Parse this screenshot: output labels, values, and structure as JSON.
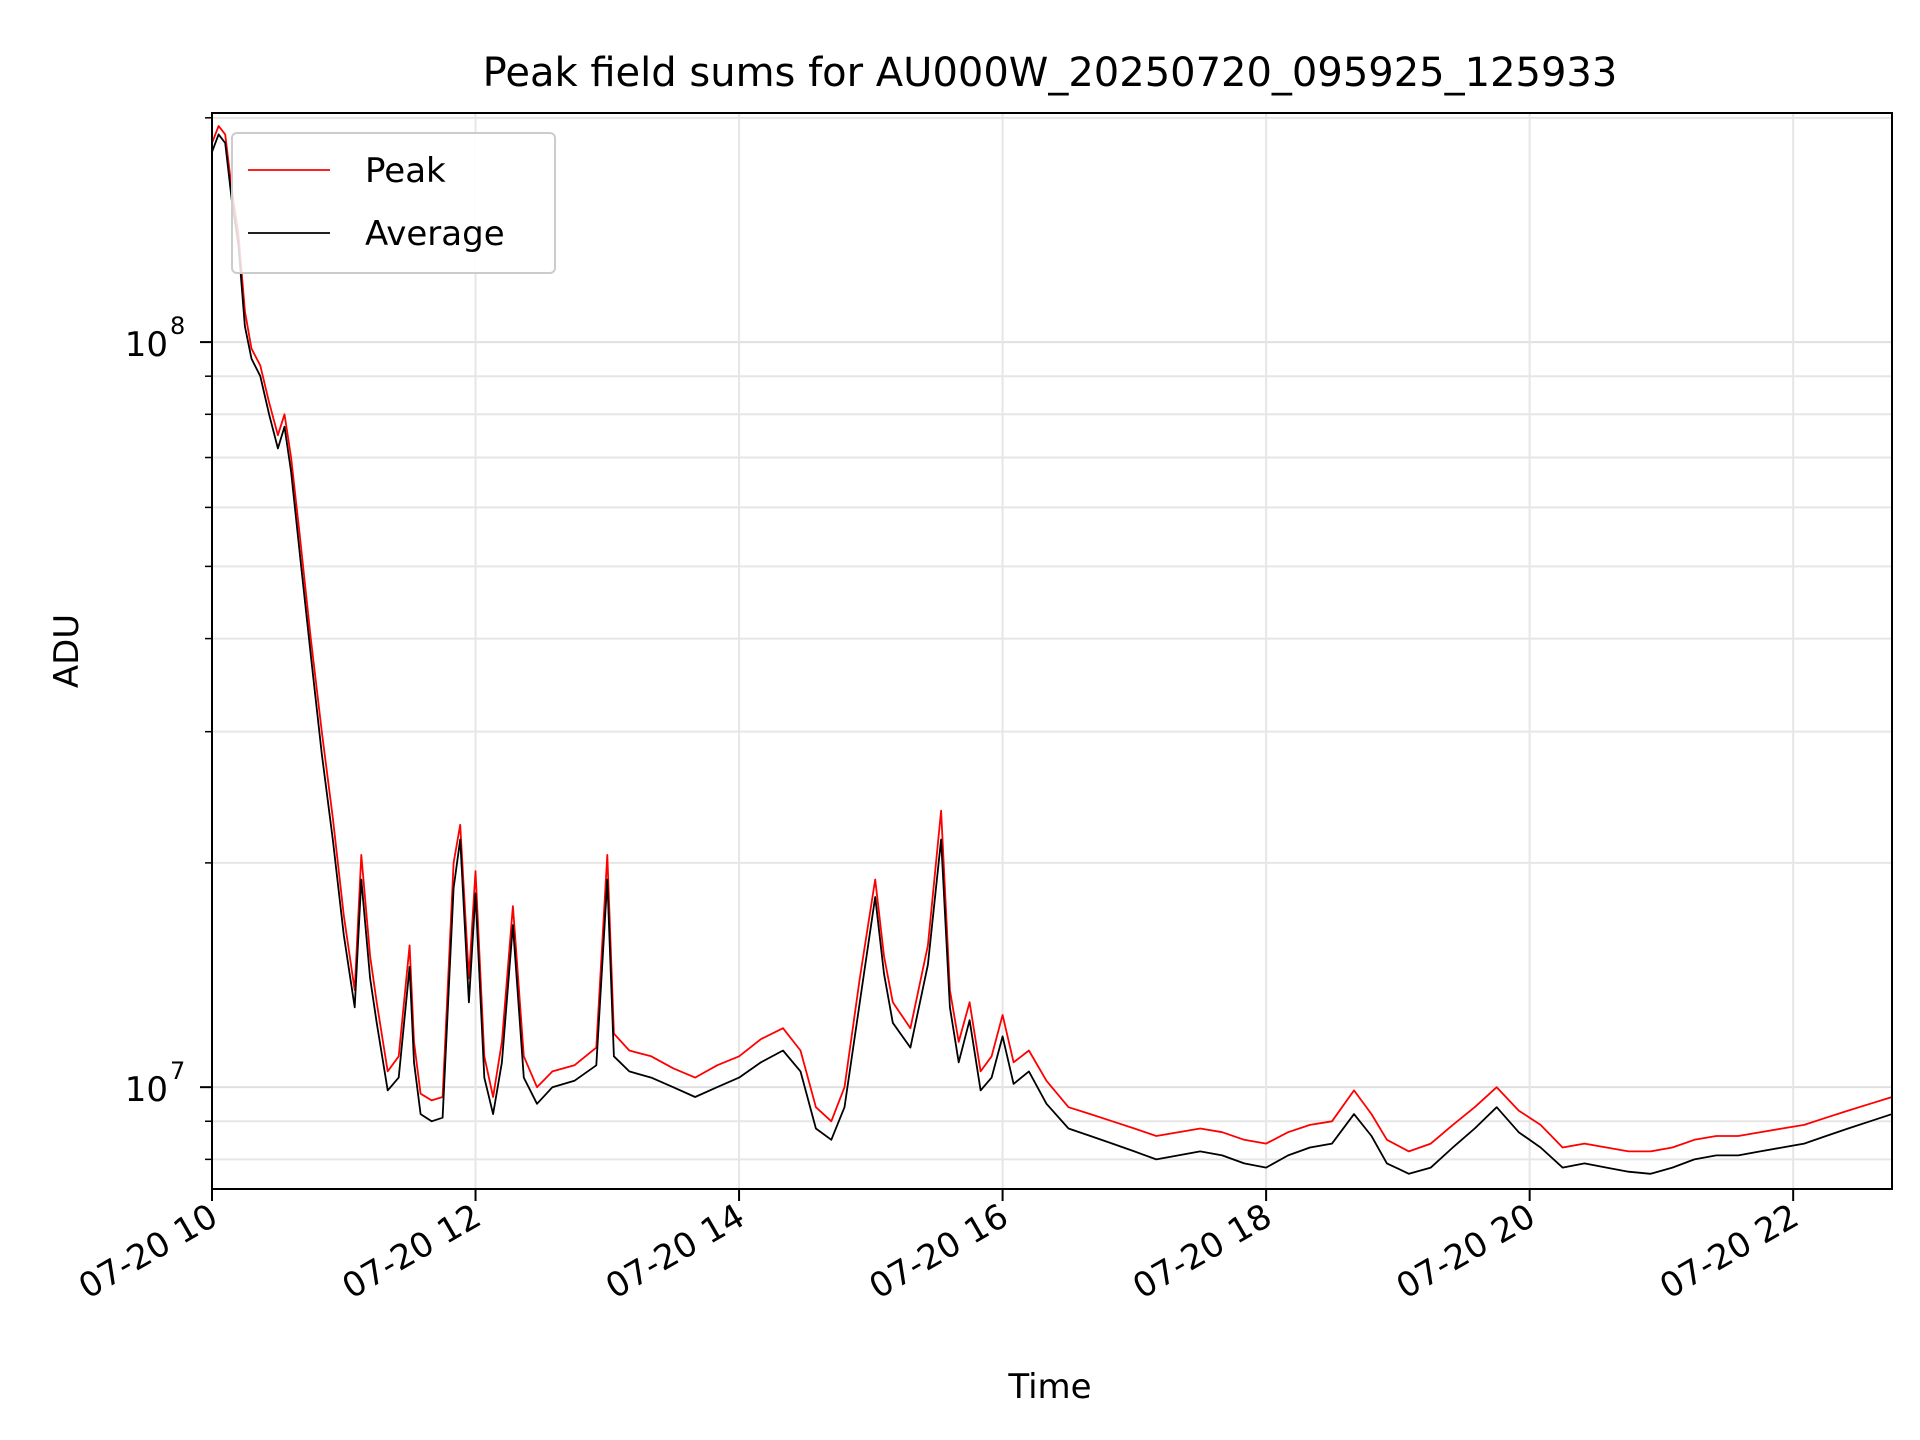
{
  "chart_data": {
    "type": "line",
    "title": "Peak field sums for AU000W_20250720_095925_125933",
    "xlabel": "Time",
    "ylabel": "ADU",
    "yscale": "log",
    "xlim": [
      "07-20 10:00",
      "07-20 22:45"
    ],
    "ylim": [
      7300000,
      203000000
    ],
    "grid": true,
    "legend_position": "top-left",
    "x_ticks": [
      "07-20 10",
      "07-20 12",
      "07-20 14",
      "07-20 16",
      "07-20 18",
      "07-20 20",
      "07-20 22"
    ],
    "y_ticks": [
      {
        "value": 10000000,
        "base": "10",
        "exponent": "7"
      },
      {
        "value": 100000000,
        "base": "10",
        "exponent": "8"
      }
    ],
    "series": [
      {
        "name": "Peak",
        "color": "#ff0000",
        "points": [
          [
            "07-20 10:00",
            185000000
          ],
          [
            "07-20 10:03",
            195000000
          ],
          [
            "07-20 10:06",
            190000000
          ],
          [
            "07-20 10:09",
            160000000
          ],
          [
            "07-20 10:12",
            140000000
          ],
          [
            "07-20 10:15",
            110000000
          ],
          [
            "07-20 10:18",
            98000000
          ],
          [
            "07-20 10:22",
            93000000
          ],
          [
            "07-20 10:26",
            83000000
          ],
          [
            "07-20 10:30",
            75000000
          ],
          [
            "07-20 10:33",
            80000000
          ],
          [
            "07-20 10:36",
            70000000
          ],
          [
            "07-20 10:40",
            55000000
          ],
          [
            "07-20 10:45",
            40000000
          ],
          [
            "07-20 10:50",
            30000000
          ],
          [
            "07-20 10:55",
            23000000
          ],
          [
            "07-20 11:00",
            17000000
          ],
          [
            "07-20 11:05",
            13500000
          ],
          [
            "07-20 11:08",
            20500000
          ],
          [
            "07-20 11:12",
            15000000
          ],
          [
            "07-20 11:15",
            13000000
          ],
          [
            "07-20 11:20",
            10500000
          ],
          [
            "07-20 11:25",
            11000000
          ],
          [
            "07-20 11:30",
            15500000
          ],
          [
            "07-20 11:32",
            11500000
          ],
          [
            "07-20 11:35",
            9800000
          ],
          [
            "07-20 11:40",
            9600000
          ],
          [
            "07-20 11:45",
            9700000
          ],
          [
            "07-20 11:50",
            20000000
          ],
          [
            "07-20 11:53",
            22500000
          ],
          [
            "07-20 11:57",
            14000000
          ],
          [
            "07-20 12:00",
            19500000
          ],
          [
            "07-20 12:04",
            11000000
          ],
          [
            "07-20 12:08",
            9700000
          ],
          [
            "07-20 12:12",
            11500000
          ],
          [
            "07-20 12:17",
            17500000
          ],
          [
            "07-20 12:22",
            11000000
          ],
          [
            "07-20 12:28",
            10000000
          ],
          [
            "07-20 12:35",
            10500000
          ],
          [
            "07-20 12:45",
            10700000
          ],
          [
            "07-20 12:55",
            11300000
          ],
          [
            "07-20 13:00",
            20500000
          ],
          [
            "07-20 13:03",
            11800000
          ],
          [
            "07-20 13:10",
            11200000
          ],
          [
            "07-20 13:20",
            11000000
          ],
          [
            "07-20 13:30",
            10600000
          ],
          [
            "07-20 13:40",
            10300000
          ],
          [
            "07-20 13:50",
            10700000
          ],
          [
            "07-20 14:00",
            11000000
          ],
          [
            "07-20 14:10",
            11600000
          ],
          [
            "07-20 14:20",
            12000000
          ],
          [
            "07-20 14:28",
            11200000
          ],
          [
            "07-20 14:35",
            9400000
          ],
          [
            "07-20 14:42",
            9000000
          ],
          [
            "07-20 14:48",
            10000000
          ],
          [
            "07-20 14:55",
            14000000
          ],
          [
            "07-20 15:02",
            19000000
          ],
          [
            "07-20 15:06",
            15000000
          ],
          [
            "07-20 15:10",
            13000000
          ],
          [
            "07-20 15:18",
            12000000
          ],
          [
            "07-20 15:26",
            15500000
          ],
          [
            "07-20 15:32",
            23500000
          ],
          [
            "07-20 15:36",
            13500000
          ],
          [
            "07-20 15:40",
            11500000
          ],
          [
            "07-20 15:45",
            13000000
          ],
          [
            "07-20 15:50",
            10500000
          ],
          [
            "07-20 15:55",
            11000000
          ],
          [
            "07-20 16:00",
            12500000
          ],
          [
            "07-20 16:05",
            10800000
          ],
          [
            "07-20 16:12",
            11200000
          ],
          [
            "07-20 16:20",
            10200000
          ],
          [
            "07-20 16:30",
            9400000
          ],
          [
            "07-20 16:40",
            9200000
          ],
          [
            "07-20 16:50",
            9000000
          ],
          [
            "07-20 17:00",
            8800000
          ],
          [
            "07-20 17:10",
            8600000
          ],
          [
            "07-20 17:20",
            8700000
          ],
          [
            "07-20 17:30",
            8800000
          ],
          [
            "07-20 17:40",
            8700000
          ],
          [
            "07-20 17:50",
            8500000
          ],
          [
            "07-20 18:00",
            8400000
          ],
          [
            "07-20 18:10",
            8700000
          ],
          [
            "07-20 18:20",
            8900000
          ],
          [
            "07-20 18:30",
            9000000
          ],
          [
            "07-20 18:40",
            9900000
          ],
          [
            "07-20 18:48",
            9200000
          ],
          [
            "07-20 18:55",
            8500000
          ],
          [
            "07-20 19:05",
            8200000
          ],
          [
            "07-20 19:15",
            8400000
          ],
          [
            "07-20 19:25",
            8900000
          ],
          [
            "07-20 19:35",
            9400000
          ],
          [
            "07-20 19:45",
            10000000
          ],
          [
            "07-20 19:55",
            9300000
          ],
          [
            "07-20 20:05",
            8900000
          ],
          [
            "07-20 20:15",
            8300000
          ],
          [
            "07-20 20:25",
            8400000
          ],
          [
            "07-20 20:35",
            8300000
          ],
          [
            "07-20 20:45",
            8200000
          ],
          [
            "07-20 20:55",
            8200000
          ],
          [
            "07-20 21:05",
            8300000
          ],
          [
            "07-20 21:15",
            8500000
          ],
          [
            "07-20 21:25",
            8600000
          ],
          [
            "07-20 21:35",
            8600000
          ],
          [
            "07-20 21:45",
            8700000
          ],
          [
            "07-20 21:55",
            8800000
          ],
          [
            "07-20 22:05",
            8900000
          ],
          [
            "07-20 22:15",
            9100000
          ],
          [
            "07-20 22:25",
            9300000
          ],
          [
            "07-20 22:35",
            9500000
          ],
          [
            "07-20 22:45",
            9700000
          ]
        ]
      },
      {
        "name": "Average",
        "color": "#000000",
        "points": [
          [
            "07-20 10:00",
            180000000
          ],
          [
            "07-20 10:03",
            190000000
          ],
          [
            "07-20 10:06",
            185000000
          ],
          [
            "07-20 10:09",
            155000000
          ],
          [
            "07-20 10:12",
            135000000
          ],
          [
            "07-20 10:15",
            105000000
          ],
          [
            "07-20 10:18",
            95000000
          ],
          [
            "07-20 10:22",
            90000000
          ],
          [
            "07-20 10:26",
            80000000
          ],
          [
            "07-20 10:30",
            72000000
          ],
          [
            "07-20 10:33",
            77000000
          ],
          [
            "07-20 10:36",
            67000000
          ],
          [
            "07-20 10:40",
            52000000
          ],
          [
            "07-20 10:45",
            38000000
          ],
          [
            "07-20 10:50",
            28000000
          ],
          [
            "07-20 10:55",
            21500000
          ],
          [
            "07-20 11:00",
            16000000
          ],
          [
            "07-20 11:05",
            12800000
          ],
          [
            "07-20 11:08",
            19000000
          ],
          [
            "07-20 11:12",
            14000000
          ],
          [
            "07-20 11:15",
            12200000
          ],
          [
            "07-20 11:20",
            9900000
          ],
          [
            "07-20 11:25",
            10300000
          ],
          [
            "07-20 11:30",
            14500000
          ],
          [
            "07-20 11:32",
            10800000
          ],
          [
            "07-20 11:35",
            9200000
          ],
          [
            "07-20 11:40",
            9000000
          ],
          [
            "07-20 11:45",
            9100000
          ],
          [
            "07-20 11:50",
            18500000
          ],
          [
            "07-20 11:53",
            21500000
          ],
          [
            "07-20 11:57",
            13000000
          ],
          [
            "07-20 12:00",
            18200000
          ],
          [
            "07-20 12:04",
            10300000
          ],
          [
            "07-20 12:08",
            9200000
          ],
          [
            "07-20 12:12",
            10800000
          ],
          [
            "07-20 12:17",
            16500000
          ],
          [
            "07-20 12:22",
            10300000
          ],
          [
            "07-20 12:28",
            9500000
          ],
          [
            "07-20 12:35",
            10000000
          ],
          [
            "07-20 12:45",
            10200000
          ],
          [
            "07-20 12:55",
            10700000
          ],
          [
            "07-20 13:00",
            19000000
          ],
          [
            "07-20 13:03",
            11000000
          ],
          [
            "07-20 13:10",
            10500000
          ],
          [
            "07-20 13:20",
            10300000
          ],
          [
            "07-20 13:30",
            10000000
          ],
          [
            "07-20 13:40",
            9700000
          ],
          [
            "07-20 13:50",
            10000000
          ],
          [
            "07-20 14:00",
            10300000
          ],
          [
            "07-20 14:10",
            10800000
          ],
          [
            "07-20 14:20",
            11200000
          ],
          [
            "07-20 14:28",
            10500000
          ],
          [
            "07-20 14:35",
            8800000
          ],
          [
            "07-20 14:42",
            8500000
          ],
          [
            "07-20 14:48",
            9400000
          ],
          [
            "07-20 14:55",
            13000000
          ],
          [
            "07-20 15:02",
            18000000
          ],
          [
            "07-20 15:06",
            14200000
          ],
          [
            "07-20 15:10",
            12200000
          ],
          [
            "07-20 15:18",
            11300000
          ],
          [
            "07-20 15:26",
            14600000
          ],
          [
            "07-20 15:32",
            21500000
          ],
          [
            "07-20 15:36",
            12800000
          ],
          [
            "07-20 15:40",
            10800000
          ],
          [
            "07-20 15:45",
            12300000
          ],
          [
            "07-20 15:50",
            9900000
          ],
          [
            "07-20 15:55",
            10300000
          ],
          [
            "07-20 16:00",
            11700000
          ],
          [
            "07-20 16:05",
            10100000
          ],
          [
            "07-20 16:12",
            10500000
          ],
          [
            "07-20 16:20",
            9500000
          ],
          [
            "07-20 16:30",
            8800000
          ],
          [
            "07-20 16:40",
            8600000
          ],
          [
            "07-20 16:50",
            8400000
          ],
          [
            "07-20 17:00",
            8200000
          ],
          [
            "07-20 17:10",
            8000000
          ],
          [
            "07-20 17:20",
            8100000
          ],
          [
            "07-20 17:30",
            8200000
          ],
          [
            "07-20 17:40",
            8100000
          ],
          [
            "07-20 17:50",
            7900000
          ],
          [
            "07-20 18:00",
            7800000
          ],
          [
            "07-20 18:10",
            8100000
          ],
          [
            "07-20 18:20",
            8300000
          ],
          [
            "07-20 18:30",
            8400000
          ],
          [
            "07-20 18:40",
            9200000
          ],
          [
            "07-20 18:48",
            8600000
          ],
          [
            "07-20 18:55",
            7900000
          ],
          [
            "07-20 19:05",
            7650000
          ],
          [
            "07-20 19:15",
            7800000
          ],
          [
            "07-20 19:25",
            8300000
          ],
          [
            "07-20 19:35",
            8800000
          ],
          [
            "07-20 19:45",
            9400000
          ],
          [
            "07-20 19:55",
            8700000
          ],
          [
            "07-20 20:05",
            8300000
          ],
          [
            "07-20 20:15",
            7800000
          ],
          [
            "07-20 20:25",
            7900000
          ],
          [
            "07-20 20:35",
            7800000
          ],
          [
            "07-20 20:45",
            7700000
          ],
          [
            "07-20 20:55",
            7650000
          ],
          [
            "07-20 21:05",
            7800000
          ],
          [
            "07-20 21:15",
            8000000
          ],
          [
            "07-20 21:25",
            8100000
          ],
          [
            "07-20 21:35",
            8100000
          ],
          [
            "07-20 21:45",
            8200000
          ],
          [
            "07-20 21:55",
            8300000
          ],
          [
            "07-20 22:05",
            8400000
          ],
          [
            "07-20 22:15",
            8600000
          ],
          [
            "07-20 22:25",
            8800000
          ],
          [
            "07-20 22:35",
            9000000
          ],
          [
            "07-20 22:45",
            9200000
          ]
        ]
      }
    ]
  }
}
